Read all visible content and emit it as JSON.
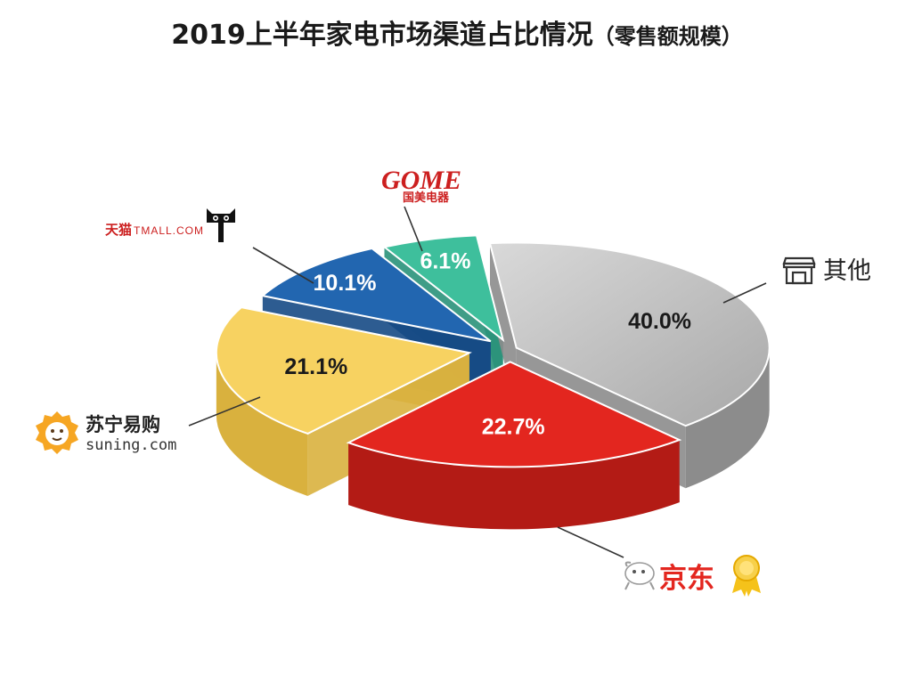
{
  "title": "2019上半年家电市场渠道占比情况",
  "subtitle": "（零售额规模）",
  "chart_data": {
    "type": "pie",
    "title": "2019上半年家电市场渠道占比情况（零售额规模）",
    "slices": [
      {
        "name": "其他",
        "value": 40.0,
        "label": "40.0%",
        "color": "#bdbdbd",
        "side": "#8c8c8c",
        "text_color": "#1a1a1a"
      },
      {
        "name": "京东",
        "value": 22.7,
        "label": "22.7%",
        "color": "#e3261f",
        "side": "#b31b15",
        "text_color": "#ffffff"
      },
      {
        "name": "苏宁易购",
        "value": 21.1,
        "label": "21.1%",
        "color": "#f7d261",
        "side": "#d9b13e",
        "text_color": "#1a1a1a"
      },
      {
        "name": "天猫 TMALL.COM",
        "value": 10.1,
        "label": "10.1%",
        "color": "#2266b0",
        "side": "#164a85",
        "text_color": "#ffffff"
      },
      {
        "name": "GOME 国美电器",
        "value": 6.1,
        "label": "6.1%",
        "color": "#3ebf9c",
        "side": "#2a927a",
        "text_color": "#ffffff"
      }
    ]
  },
  "brands": {
    "other": "其他",
    "jd": "京东",
    "suning_cn": "苏宁易购",
    "suning_en": "suning.com",
    "tmall_cn": "天猫",
    "tmall_en": "TMALL.COM",
    "gome_en": "GOME",
    "gome_cn": "国美电器"
  }
}
